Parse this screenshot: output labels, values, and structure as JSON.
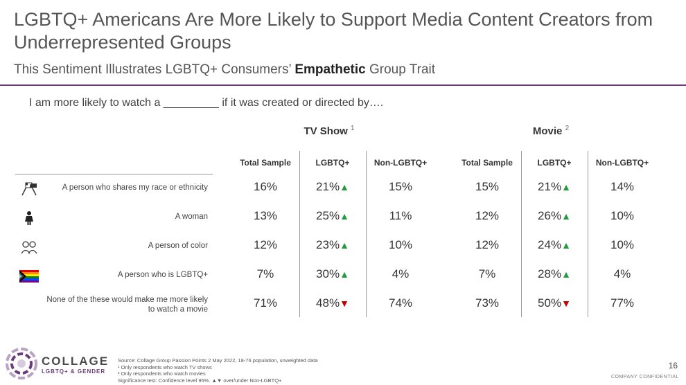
{
  "title": "LGBTQ+ Americans Are More Likely to Support Media Content Creators from Underrepresented Groups",
  "subtitle": {
    "prefix": "This Sentiment Illustrates LGBTQ+ Consumers’ ",
    "bold": "Empathetic",
    "suffix": " Group Trait"
  },
  "prompt": "I am more likely to watch a _________ if it was created or directed by….",
  "groups": [
    {
      "label": "TV Show",
      "sup": "1"
    },
    {
      "label": "Movie",
      "sup": "2"
    }
  ],
  "columns": [
    "Total Sample",
    "LGBTQ+",
    "Non-LGBTQ+",
    "Total Sample",
    "LGBTQ+",
    "Non-LGBTQ+"
  ],
  "rows": [
    {
      "label": "A person who shares my race or ethnicity",
      "icon": "flags-icon",
      "values": [
        "16%",
        "21%",
        "15%",
        "15%",
        "21%",
        "14%"
      ],
      "sig": [
        "",
        "up",
        "",
        "",
        "up",
        ""
      ]
    },
    {
      "label": "A woman",
      "icon": "woman-icon",
      "values": [
        "13%",
        "25%",
        "11%",
        "12%",
        "26%",
        "10%"
      ],
      "sig": [
        "",
        "up",
        "",
        "",
        "up",
        ""
      ]
    },
    {
      "label": "A person of color",
      "icon": "people-icon",
      "values": [
        "12%",
        "23%",
        "10%",
        "12%",
        "24%",
        "10%"
      ],
      "sig": [
        "",
        "up",
        "",
        "",
        "up",
        ""
      ]
    },
    {
      "label": "A person who is LGBTQ+",
      "icon": "pride-flag-icon",
      "values": [
        "7%",
        "30%",
        "4%",
        "7%",
        "28%",
        "4%"
      ],
      "sig": [
        "",
        "up",
        "",
        "",
        "up",
        ""
      ]
    },
    {
      "label": "None of the these would make me more likely to watch a movie",
      "icon": "",
      "values": [
        "71%",
        "48%",
        "74%",
        "73%",
        "50%",
        "77%"
      ],
      "sig": [
        "",
        "down",
        "",
        "",
        "down",
        ""
      ]
    }
  ],
  "logo": {
    "name": "COLLAGE",
    "sub": "LGBTQ+ & GENDER"
  },
  "notes": [
    "Source: Collage Group Passion Points 2 May 2022, 18-76 population, unweighted data",
    "¹ Only respondents who watch TV shows",
    "² Only respondents who watch movies",
    "Significance test: Confidence level 95%. ▲▼ over/under Non-LGBTQ+"
  ],
  "page_number": "16",
  "confidential": "COMPANY CONFIDENTIAL"
}
